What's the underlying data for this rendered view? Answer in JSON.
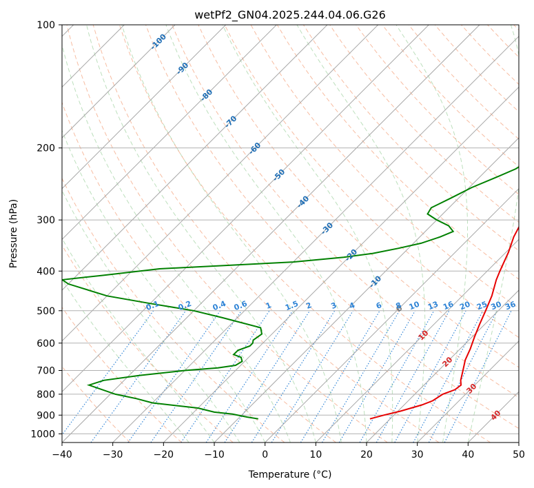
{
  "chart_data": {
    "type": "line",
    "subtype": "skew-T log-P diagram",
    "title": "wetPf2_GN04.2025.244.04.06.G26",
    "xlabel": "Temperature (°C)",
    "ylabel": "Pressure (hPa)",
    "xlim": [
      -40,
      50
    ],
    "ylim": [
      1050,
      100
    ],
    "x_ticks": [
      -40,
      -30,
      -20,
      -10,
      0,
      10,
      20,
      30,
      40,
      50
    ],
    "x_tick_labels": [
      "−40",
      "−30",
      "−20",
      "−10",
      "0",
      "10",
      "20",
      "30",
      "40",
      "50"
    ],
    "y_ticks": [
      100,
      200,
      300,
      400,
      500,
      600,
      700,
      800,
      900,
      1000
    ],
    "y_tick_labels": [
      "100",
      "200",
      "300",
      "400",
      "500",
      "600",
      "700",
      "800",
      "900",
      "1000"
    ],
    "isotherm_labels": [
      "-100",
      "-90",
      "-80",
      "-70",
      "-60",
      "-50",
      "-40",
      "-30",
      "-20",
      "-10",
      "0",
      "10",
      "20",
      "30",
      "40"
    ],
    "mixing_ratio_labels": [
      "0.1",
      "0.2",
      "0.4",
      "0.6",
      "1",
      "1.5",
      "2",
      "3",
      "4",
      "6",
      "8",
      "10",
      "13",
      "16",
      "20",
      "25",
      "30",
      "36"
    ],
    "series": [
      {
        "name": "Temperature",
        "color": "#e60000",
        "points": [
          [
            919,
            16.0
          ],
          [
            900,
            18.0
          ],
          [
            880,
            20.5
          ],
          [
            850,
            23.5
          ],
          [
            830,
            24.8
          ],
          [
            800,
            25.5
          ],
          [
            780,
            27.0
          ],
          [
            760,
            27.3
          ],
          [
            740,
            26.3
          ],
          [
            700,
            24.8
          ],
          [
            660,
            23.2
          ],
          [
            620,
            22.0
          ],
          [
            580,
            20.5
          ],
          [
            540,
            19.0
          ],
          [
            500,
            17.5
          ],
          [
            460,
            15.8
          ],
          [
            420,
            13.5
          ],
          [
            400,
            12.5
          ],
          [
            360,
            10.5
          ],
          [
            330,
            8.5
          ],
          [
            305,
            7.2
          ],
          [
            285,
            6.5
          ],
          [
            270,
            5.5
          ],
          [
            250,
            3.0
          ],
          [
            230,
            0.0
          ],
          [
            215,
            -1.5
          ],
          [
            200,
            -2.0
          ],
          [
            185,
            -1.0
          ],
          [
            170,
            0.5
          ],
          [
            160,
            1.5
          ],
          [
            150,
            3.5
          ],
          [
            145,
            4.5
          ],
          [
            138,
            5.5
          ],
          [
            130,
            6.2
          ],
          [
            120,
            5.5
          ],
          [
            113,
            6.5
          ],
          [
            105,
            8.5
          ],
          [
            100,
            10.0
          ]
        ]
      },
      {
        "name": "Dewpoint",
        "color": "#008000",
        "points": [
          [
            919,
            -6.0
          ],
          [
            910,
            -8.5
          ],
          [
            895,
            -12.0
          ],
          [
            885,
            -16.0
          ],
          [
            865,
            -20.0
          ],
          [
            840,
            -30.0
          ],
          [
            820,
            -34.0
          ],
          [
            800,
            -39.0
          ],
          [
            760,
            -46.0
          ],
          [
            740,
            -44.0
          ],
          [
            720,
            -38.0
          ],
          [
            700,
            -30.0
          ],
          [
            690,
            -24.0
          ],
          [
            680,
            -21.0
          ],
          [
            665,
            -20.5
          ],
          [
            650,
            -21.5
          ],
          [
            640,
            -23.5
          ],
          [
            625,
            -23.5
          ],
          [
            610,
            -22.0
          ],
          [
            600,
            -22.0
          ],
          [
            590,
            -22.5
          ],
          [
            570,
            -22.0
          ],
          [
            550,
            -23.5
          ],
          [
            520,
            -33.0
          ],
          [
            500,
            -40.0
          ],
          [
            480,
            -50.0
          ],
          [
            460,
            -60.0
          ],
          [
            430,
            -70.0
          ],
          [
            420,
            -72.0
          ],
          [
            410,
            -65.0
          ],
          [
            395,
            -55.0
          ],
          [
            380,
            -30.0
          ],
          [
            370,
            -21.0
          ],
          [
            362,
            -16.0
          ],
          [
            352,
            -12.0
          ],
          [
            342,
            -8.5
          ],
          [
            330,
            -6.0
          ],
          [
            320,
            -4.5
          ],
          [
            310,
            -6.5
          ],
          [
            300,
            -10.0
          ],
          [
            290,
            -13.0
          ],
          [
            280,
            -13.5
          ],
          [
            265,
            -11.5
          ],
          [
            250,
            -9.5
          ],
          [
            235,
            -6.5
          ],
          [
            225,
            -4.5
          ],
          [
            210,
            -3.0
          ],
          [
            200,
            -3.5
          ],
          [
            185,
            -6.0
          ],
          [
            175,
            -9.0
          ],
          [
            165,
            -12.0
          ],
          [
            157,
            -14.0
          ],
          [
            150,
            -14.5
          ],
          [
            145,
            -13.5
          ],
          [
            138,
            -10.5
          ],
          [
            130,
            -6.0
          ],
          [
            120,
            -3.0
          ],
          [
            113,
            -2.5
          ],
          [
            105,
            -0.5
          ],
          [
            100,
            1.0
          ]
        ]
      }
    ]
  }
}
